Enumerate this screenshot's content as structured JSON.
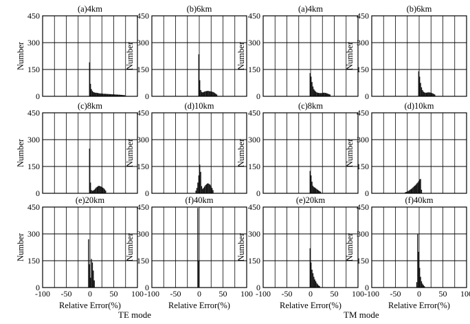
{
  "figure": {
    "groups": [
      {
        "id": "te",
        "caption": "TE mode"
      },
      {
        "id": "tm",
        "caption": "TM mode"
      }
    ],
    "axis_text": {
      "ylabel": "Number",
      "xlabel": "Relative Error(%)"
    },
    "colors": {
      "bars": "#111111",
      "axis": "#000000",
      "grid": "#000000",
      "background": "#ffffff"
    }
  },
  "chart_data": [
    {
      "id": "te-a",
      "group": "te",
      "row": 0,
      "col": 0,
      "type": "bar",
      "title": "(a)4km",
      "xlabel": "Relative Error(%)",
      "ylabel": "Number",
      "xlim": [
        -100,
        100
      ],
      "ylim": [
        0,
        450
      ],
      "xticks": [
        -100,
        -50,
        0,
        50,
        100
      ],
      "yticks": [
        0,
        150,
        300,
        450
      ],
      "grid": true,
      "bin_width": 2,
      "bin_start": -2,
      "values": [
        190,
        70,
        40,
        30,
        24,
        22,
        20,
        20,
        19,
        18,
        17,
        16,
        16,
        15,
        15,
        14,
        14,
        14,
        13,
        13,
        13,
        12,
        12,
        12,
        11,
        11,
        11,
        10,
        10,
        10,
        9,
        9,
        9,
        8,
        8,
        7,
        7,
        6
      ]
    },
    {
      "id": "te-b",
      "group": "te",
      "row": 0,
      "col": 1,
      "type": "bar",
      "title": "(b)6km",
      "xlabel": "Relative Error(%)",
      "ylabel": "Number",
      "xlim": [
        -100,
        100
      ],
      "ylim": [
        0,
        450
      ],
      "xticks": [
        -100,
        -50,
        0,
        50,
        100
      ],
      "yticks": [
        0,
        150,
        300,
        450
      ],
      "grid": true,
      "bin_width": 2,
      "bin_start": -2,
      "values": [
        235,
        90,
        35,
        25,
        22,
        24,
        26,
        28,
        29,
        30,
        30,
        29,
        28,
        27,
        26,
        24,
        22,
        18,
        14,
        10
      ]
    },
    {
      "id": "te-c",
      "group": "te",
      "row": 1,
      "col": 0,
      "type": "bar",
      "title": "(c)8km",
      "xlabel": "Relative Error(%)",
      "ylabel": "Number",
      "xlim": [
        -100,
        100
      ],
      "ylim": [
        0,
        450
      ],
      "xticks": [
        -100,
        -50,
        0,
        50,
        100
      ],
      "yticks": [
        0,
        150,
        300,
        450
      ],
      "grid": true,
      "bin_width": 2,
      "bin_start": -2,
      "values": [
        250,
        60,
        18,
        14,
        16,
        20,
        26,
        32,
        36,
        40,
        42,
        40,
        38,
        35,
        32,
        28,
        22,
        15
      ]
    },
    {
      "id": "te-d",
      "group": "te",
      "row": 1,
      "col": 1,
      "type": "bar",
      "title": "(d)10km",
      "xlabel": "Relative Error(%)",
      "ylabel": "Number",
      "xlim": [
        -100,
        100
      ],
      "ylim": [
        0,
        450
      ],
      "xticks": [
        -100,
        -50,
        0,
        50,
        100
      ],
      "yticks": [
        0,
        150,
        300,
        450
      ],
      "grid": true,
      "bin_width": 2,
      "bin_start": -8,
      "values": [
        15,
        30,
        60,
        100,
        160,
        120,
        40,
        25,
        30,
        38,
        45,
        50,
        55,
        55,
        52,
        48,
        40,
        30,
        18
      ]
    },
    {
      "id": "te-e",
      "group": "te",
      "row": 2,
      "col": 0,
      "type": "bar",
      "title": "(e)20km",
      "xlabel": "Relative Error(%)",
      "ylabel": "Number",
      "xlim": [
        -100,
        100
      ],
      "ylim": [
        0,
        450
      ],
      "xticks": [
        -100,
        -50,
        0,
        50,
        100
      ],
      "yticks": [
        0,
        150,
        300,
        450
      ],
      "grid": true,
      "bin_width": 2,
      "bin_start": -4,
      "values": [
        270,
        130,
        55,
        160,
        140,
        95,
        40
      ]
    },
    {
      "id": "te-f",
      "group": "te",
      "row": 2,
      "col": 1,
      "type": "bar",
      "title": "(f)40km",
      "xlabel": "Relative Error(%)",
      "ylabel": "Number",
      "xlim": [
        -100,
        100
      ],
      "ylim": [
        0,
        450
      ],
      "xticks": [
        -100,
        -50,
        0,
        50,
        100
      ],
      "yticks": [
        0,
        150,
        300,
        450
      ],
      "grid": true,
      "bin_width": 2,
      "bin_start": -4,
      "values": [
        445,
        150
      ]
    },
    {
      "id": "tm-a",
      "group": "tm",
      "row": 0,
      "col": 0,
      "type": "bar",
      "title": "(a)4km",
      "xlabel": "Relative Error(%)",
      "ylabel": "Number",
      "xlim": [
        -100,
        100
      ],
      "ylim": [
        0,
        450
      ],
      "xticks": [
        -100,
        -50,
        0,
        50,
        100
      ],
      "yticks": [
        0,
        150,
        300,
        450
      ],
      "grid": true,
      "bin_width": 2,
      "bin_start": -2,
      "values": [
        130,
        110,
        80,
        55,
        40,
        32,
        26,
        22,
        20,
        19,
        18,
        18,
        18,
        19,
        20,
        20,
        19,
        18,
        16,
        14,
        12,
        10
      ]
    },
    {
      "id": "tm-b",
      "group": "tm",
      "row": 0,
      "col": 1,
      "type": "bar",
      "title": "(b)6km",
      "xlabel": "Relative Error(%)",
      "ylabel": "Number",
      "xlim": [
        -100,
        100
      ],
      "ylim": [
        0,
        450
      ],
      "xticks": [
        -100,
        -50,
        0,
        50,
        100
      ],
      "yticks": [
        0,
        150,
        300,
        450
      ],
      "grid": true,
      "bin_width": 2,
      "bin_start": -2,
      "values": [
        140,
        110,
        75,
        50,
        35,
        26,
        22,
        20,
        20,
        21,
        22,
        22,
        21,
        20,
        18,
        16,
        13,
        10
      ]
    },
    {
      "id": "tm-c",
      "group": "tm",
      "row": 1,
      "col": 0,
      "type": "bar",
      "title": "(c)8km",
      "xlabel": "Relative Error(%)",
      "ylabel": "Number",
      "xlim": [
        -100,
        100
      ],
      "ylim": [
        0,
        450
      ],
      "xticks": [
        -100,
        -50,
        0,
        50,
        100
      ],
      "yticks": [
        0,
        150,
        300,
        450
      ],
      "grid": true,
      "bin_width": 2,
      "bin_start": -2,
      "values": [
        125,
        100,
        65,
        42,
        35,
        32,
        28,
        24,
        20,
        16,
        12,
        9
      ]
    },
    {
      "id": "tm-d",
      "group": "tm",
      "row": 1,
      "col": 1,
      "type": "bar",
      "title": "(d)10km",
      "xlabel": "Relative Error(%)",
      "ylabel": "Number",
      "xlim": [
        -100,
        100
      ],
      "ylim": [
        0,
        450
      ],
      "xticks": [
        -100,
        -50,
        0,
        50,
        100
      ],
      "yticks": [
        0,
        150,
        300,
        450
      ],
      "grid": true,
      "bin_width": 2,
      "bin_start": -30,
      "values": [
        6,
        8,
        10,
        13,
        16,
        20,
        24,
        28,
        33,
        38,
        43,
        48,
        55,
        60,
        68,
        78,
        80,
        20
      ]
    },
    {
      "id": "tm-e",
      "group": "tm",
      "row": 2,
      "col": 0,
      "type": "bar",
      "title": "(e)20km",
      "xlabel": "Relative Error(%)",
      "ylabel": "Number",
      "xlim": [
        -100,
        100
      ],
      "ylim": [
        0,
        450
      ],
      "xticks": [
        -100,
        -50,
        0,
        50,
        100
      ],
      "yticks": [
        0,
        150,
        300,
        450
      ],
      "grid": true,
      "bin_width": 2,
      "bin_start": -2,
      "values": [
        220,
        140,
        100,
        80,
        60,
        45,
        35,
        25,
        18,
        12,
        8
      ]
    },
    {
      "id": "tm-f",
      "group": "tm",
      "row": 2,
      "col": 1,
      "type": "bar",
      "title": "(f)40km",
      "xlabel": "Relative Error(%)",
      "ylabel": "Number",
      "xlim": [
        -100,
        100
      ],
      "ylim": [
        0,
        450
      ],
      "xticks": [
        -100,
        -50,
        0,
        50,
        100
      ],
      "yticks": [
        0,
        150,
        300,
        450
      ],
      "grid": true,
      "bin_width": 2,
      "bin_start": -6,
      "values": [
        30,
        300,
        200,
        110,
        60,
        35,
        22,
        14,
        8
      ]
    }
  ]
}
